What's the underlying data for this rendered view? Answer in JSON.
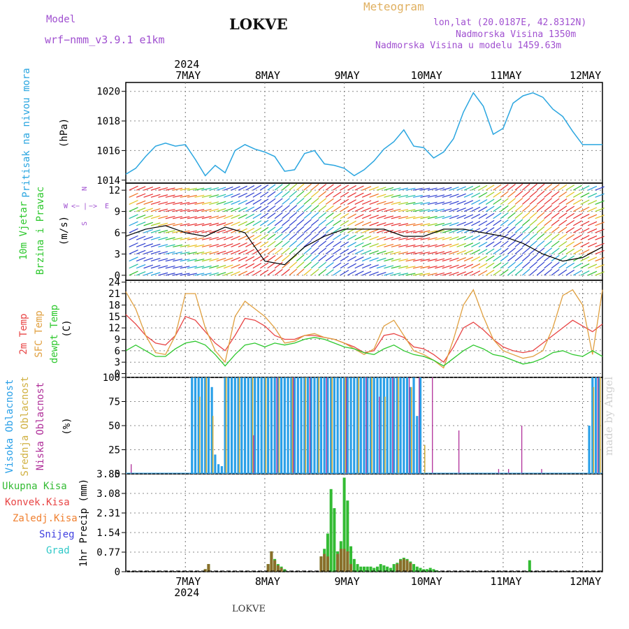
{
  "header": {
    "model_label": "Model",
    "model_name": "wrf−nmm_v3.9.1  e1km",
    "station": "LOKVE",
    "meteogram": "Meteogram",
    "lonlat": "lon,lat (20.0187E, 42.8312N)",
    "elevation": "Nadmorska Visina 1350m",
    "model_elevation": "Nadmorska Visina u modelu 1459.63m",
    "year_top": "2024",
    "year_bottom": "2024",
    "footer_station": "LOKVE",
    "watermark": "made by Angel"
  },
  "colors": {
    "pressure": "#2ba6e0",
    "temp2m": "#e84545",
    "sfc": "#e0a040",
    "dew": "#2ec82e",
    "high_cloud": "#2aa0e8",
    "mid_cloud": "#d0b040",
    "low_cloud": "#b0309a",
    "total_precip": "#33bb33",
    "conv_precip": "#8a6e2a",
    "wind_speed_line": "#000000"
  },
  "chart_data": [
    {
      "type": "line",
      "ylabel_outer": "Pritisak na nivou mora",
      "ylabel": "(hPa)",
      "yticks": [
        "1014",
        "1016",
        "1018",
        "1020"
      ],
      "ylim": [
        1013.8,
        1020.6
      ],
      "xlim": [
        0,
        144
      ],
      "series": [
        {
          "name": "Pritisak na nivou mora",
          "x": [
            0,
            3,
            6,
            9,
            12,
            15,
            18,
            21,
            24,
            27,
            30,
            33,
            36,
            39,
            42,
            45,
            48,
            51,
            54,
            57,
            60,
            63,
            66,
            69,
            72,
            75,
            78,
            81,
            84,
            87,
            90,
            93,
            96,
            99,
            102,
            105,
            108,
            111,
            114,
            117,
            120,
            123,
            126,
            129,
            132,
            135,
            138,
            141,
            144
          ],
          "values": [
            1014.4,
            1014.8,
            1015.6,
            1016.3,
            1016.5,
            1016.3,
            1016.4,
            1015.4,
            1014.3,
            1015.0,
            1014.5,
            1016.0,
            1016.4,
            1016.1,
            1015.9,
            1015.6,
            1014.6,
            1014.7,
            1015.8,
            1016.0,
            1015.1,
            1015.0,
            1014.8,
            1014.3,
            1014.7,
            1015.3,
            1016.1,
            1016.6,
            1017.4,
            1016.3,
            1016.2,
            1015.5,
            1015.9,
            1016.8,
            1018.6,
            1019.9,
            1019.0,
            1017.1,
            1017.5,
            1019.2,
            1019.7,
            1019.9,
            1019.6,
            1018.8,
            1018.3,
            1017.3,
            1016.4,
            1016.4,
            1016.4
          ]
        }
      ]
    },
    {
      "type": "line",
      "ylabel_outer": [
        "10m Vjetar",
        "Brzina i Pravac"
      ],
      "ylabel": "(m/s)",
      "compass": [
        "W",
        "<−",
        "|",
        "−>",
        "E",
        "N",
        "S"
      ],
      "yticks": [
        "0",
        "3",
        "6",
        "9",
        "12"
      ],
      "ylim": [
        -0.7,
        13
      ],
      "xlim": [
        0,
        144
      ],
      "series": [
        {
          "name": "wind speed",
          "x": [
            0,
            6,
            12,
            18,
            24,
            30,
            36,
            42,
            48,
            54,
            60,
            66,
            72,
            78,
            84,
            90,
            96,
            102,
            108,
            114,
            120,
            126,
            132,
            138,
            144
          ],
          "values": [
            5.5,
            6.5,
            7.0,
            6.0,
            5.5,
            6.8,
            6.0,
            2.0,
            1.5,
            4.0,
            5.5,
            6.5,
            6.5,
            6.5,
            5.5,
            5.5,
            6.5,
            6.5,
            6.0,
            5.5,
            4.5,
            3.0,
            2.0,
            2.5,
            4.0
          ]
        }
      ]
    },
    {
      "type": "line",
      "ylabel_outer": [
        "2m Temp",
        "SFC Temp",
        "dewpt Temp"
      ],
      "ylabel": "(C)",
      "yticks": [
        "0",
        "3",
        "6",
        "9",
        "12",
        "15",
        "18",
        "21",
        "24"
      ],
      "ylim": [
        -1,
        24.5
      ],
      "xlim": [
        0,
        144
      ],
      "series": [
        {
          "name": "2m Temp",
          "x": [
            0,
            3,
            6,
            9,
            12,
            15,
            18,
            21,
            24,
            27,
            30,
            33,
            36,
            39,
            42,
            45,
            48,
            51,
            54,
            57,
            60,
            63,
            66,
            69,
            72,
            75,
            78,
            81,
            84,
            87,
            90,
            93,
            96,
            99,
            102,
            105,
            108,
            111,
            114,
            117,
            120,
            123,
            126,
            129,
            132,
            135,
            138,
            141,
            144
          ],
          "values": [
            15.5,
            13,
            10,
            8,
            7.5,
            10,
            15,
            14,
            11,
            8,
            6,
            10,
            14.5,
            14,
            12.5,
            10,
            9,
            9,
            10,
            10,
            9.5,
            9,
            8,
            7,
            5.5,
            6,
            10,
            10.5,
            9.5,
            7,
            6.5,
            5,
            3,
            7,
            12,
            13.5,
            11.5,
            9,
            7,
            6,
            5.5,
            6,
            8,
            10,
            12,
            14,
            12.5,
            11,
            13
          ]
        },
        {
          "name": "SFC Temp",
          "x": [
            0,
            3,
            6,
            9,
            12,
            15,
            18,
            21,
            24,
            27,
            30,
            33,
            36,
            39,
            42,
            45,
            48,
            51,
            54,
            57,
            60,
            63,
            66,
            69,
            72,
            75,
            78,
            81,
            84,
            87,
            90,
            93,
            96,
            99,
            102,
            105,
            108,
            111,
            114,
            117,
            120,
            123,
            126,
            129,
            132,
            135,
            138,
            141,
            144
          ],
          "values": [
            21.5,
            17,
            10,
            5.5,
            5,
            10,
            21,
            21,
            12,
            6,
            3,
            15,
            19,
            17,
            15,
            12,
            8,
            8.5,
            10,
            10.5,
            9.5,
            9,
            8,
            6.5,
            5,
            6.5,
            12.5,
            14,
            10,
            6,
            5,
            3.5,
            1.5,
            9,
            18,
            22,
            15,
            9,
            6,
            5,
            4,
            4.5,
            6,
            12,
            20.5,
            22,
            18,
            5,
            22
          ]
        },
        {
          "name": "dewpt Temp",
          "x": [
            0,
            3,
            6,
            9,
            12,
            15,
            18,
            21,
            24,
            27,
            30,
            33,
            36,
            39,
            42,
            45,
            48,
            51,
            54,
            57,
            60,
            63,
            66,
            69,
            72,
            75,
            78,
            81,
            84,
            87,
            90,
            93,
            96,
            99,
            102,
            105,
            108,
            111,
            114,
            117,
            120,
            123,
            126,
            129,
            132,
            135,
            138,
            141,
            144
          ],
          "values": [
            6,
            7.5,
            6,
            4.5,
            4.5,
            6.5,
            8,
            8.5,
            7.5,
            5,
            2,
            5,
            7.5,
            8,
            7,
            8,
            7.5,
            8,
            9,
            9.5,
            9,
            8,
            7,
            6.5,
            5.5,
            5,
            6.5,
            7.5,
            6,
            5,
            4.5,
            3.5,
            2,
            4,
            6,
            7.5,
            6.5,
            5,
            4.5,
            3.5,
            2.5,
            3,
            4,
            5.5,
            6,
            5,
            4.5,
            6,
            4.5
          ]
        }
      ]
    },
    {
      "type": "bar",
      "ylabel_outer": [
        "Visoka Oblacnost",
        "Srednja Oblacnost",
        "Niska Oblacnost"
      ],
      "ylabel": "(%)",
      "yticks": [
        "0",
        "25",
        "50",
        "75",
        "100"
      ],
      "ylim": [
        0,
        100
      ],
      "xlim": [
        0,
        144
      ],
      "series": [
        {
          "name": "Visoka Oblacnost",
          "x": [
            20,
            21,
            22,
            23,
            24,
            25,
            26,
            27,
            28,
            29,
            30,
            31,
            32,
            33,
            34,
            35,
            36,
            37,
            38,
            39,
            40,
            41,
            42,
            43,
            44,
            45,
            46,
            47,
            48,
            49,
            50,
            51,
            52,
            53,
            54,
            55,
            56,
            57,
            58,
            59,
            60,
            61,
            62,
            63,
            64,
            65,
            66,
            67,
            68,
            69,
            70,
            71,
            72,
            73,
            74,
            75,
            76,
            77,
            78,
            79,
            80,
            81,
            82,
            83,
            84,
            85,
            86,
            87,
            88,
            89,
            140,
            141,
            142,
            143
          ],
          "values": [
            100,
            100,
            100,
            100,
            100,
            100,
            90,
            20,
            10,
            8,
            100,
            100,
            100,
            100,
            100,
            100,
            100,
            100,
            100,
            100,
            100,
            100,
            100,
            100,
            100,
            100,
            100,
            100,
            100,
            100,
            100,
            100,
            100,
            100,
            100,
            100,
            100,
            100,
            100,
            100,
            100,
            100,
            100,
            100,
            100,
            100,
            100,
            100,
            100,
            100,
            100,
            100,
            100,
            100,
            100,
            100,
            100,
            100,
            100,
            100,
            100,
            100,
            100,
            100,
            100,
            100,
            90,
            100,
            60,
            100,
            50,
            100,
            100,
            100
          ]
        },
        {
          "name": "Srednja Oblacnost",
          "x": [
            22,
            24,
            26,
            30,
            34,
            38,
            42,
            46,
            50,
            54,
            58,
            62,
            66,
            70,
            74,
            78,
            82,
            86,
            90,
            141,
            143
          ],
          "values": [
            80,
            100,
            60,
            100,
            100,
            100,
            100,
            100,
            100,
            100,
            100,
            100,
            100,
            100,
            100,
            80,
            100,
            90,
            30,
            90,
            100
          ]
        },
        {
          "name": "Niska Oblacnost",
          "x": [
            1,
            38,
            45,
            50,
            55,
            60,
            66,
            72,
            76,
            80,
            85,
            88,
            92,
            100,
            112,
            115,
            119,
            125,
            142
          ],
          "values": [
            10,
            40,
            100,
            100,
            100,
            100,
            100,
            100,
            80,
            100,
            100,
            100,
            100,
            45,
            5,
            5,
            50,
            5,
            100
          ]
        }
      ]
    },
    {
      "type": "bar",
      "ylabel_outer": [
        "Ukupna Kisa",
        "Konvek.Kisa",
        "Zaledj.Kisa",
        "Snijeg",
        "Grad"
      ],
      "ylabel": "1hr Precip (mm)",
      "yticks": [
        "0",
        "0.77",
        "1.54",
        "2.31",
        "3.08",
        "3.85"
      ],
      "ylim": [
        0,
        3.85
      ],
      "xlim": [
        0,
        144
      ],
      "xticks": [
        "7MAY",
        "8MAY",
        "9MAY",
        "10MAY",
        "11MAY",
        "12MAY"
      ],
      "series": [
        {
          "name": "Ukupna Kisa",
          "x": [
            24,
            25,
            43,
            44,
            45,
            46,
            47,
            48,
            59,
            60,
            61,
            62,
            63,
            64,
            65,
            66,
            67,
            68,
            69,
            70,
            71,
            72,
            73,
            74,
            75,
            76,
            77,
            78,
            79,
            80,
            81,
            82,
            83,
            84,
            85,
            86,
            87,
            88,
            89,
            90,
            91,
            92,
            93,
            94,
            122
          ],
          "values": [
            0.1,
            0.3,
            0.3,
            0.8,
            0.5,
            0.3,
            0.2,
            0.1,
            0.6,
            0.9,
            1.5,
            3.25,
            2.5,
            0.8,
            1.2,
            3.7,
            2.8,
            1.0,
            0.5,
            0.3,
            0.2,
            0.2,
            0.2,
            0.2,
            0.15,
            0.2,
            0.3,
            0.25,
            0.2,
            0.15,
            0.3,
            0.35,
            0.5,
            0.55,
            0.5,
            0.4,
            0.3,
            0.2,
            0.15,
            0.1,
            0.1,
            0.15,
            0.1,
            0.05,
            0.45
          ]
        },
        {
          "name": "Konvek.Kisa",
          "x": [
            24,
            25,
            43,
            44,
            45,
            46,
            47,
            59,
            60,
            61,
            64,
            65,
            66,
            67,
            68,
            82,
            83,
            84,
            85,
            86
          ],
          "values": [
            0.1,
            0.3,
            0.3,
            0.8,
            0.45,
            0.25,
            0.15,
            0.6,
            0.7,
            0.6,
            0.7,
            0.9,
            0.9,
            0.8,
            0.3,
            0.3,
            0.45,
            0.5,
            0.45,
            0.35
          ]
        }
      ]
    }
  ]
}
